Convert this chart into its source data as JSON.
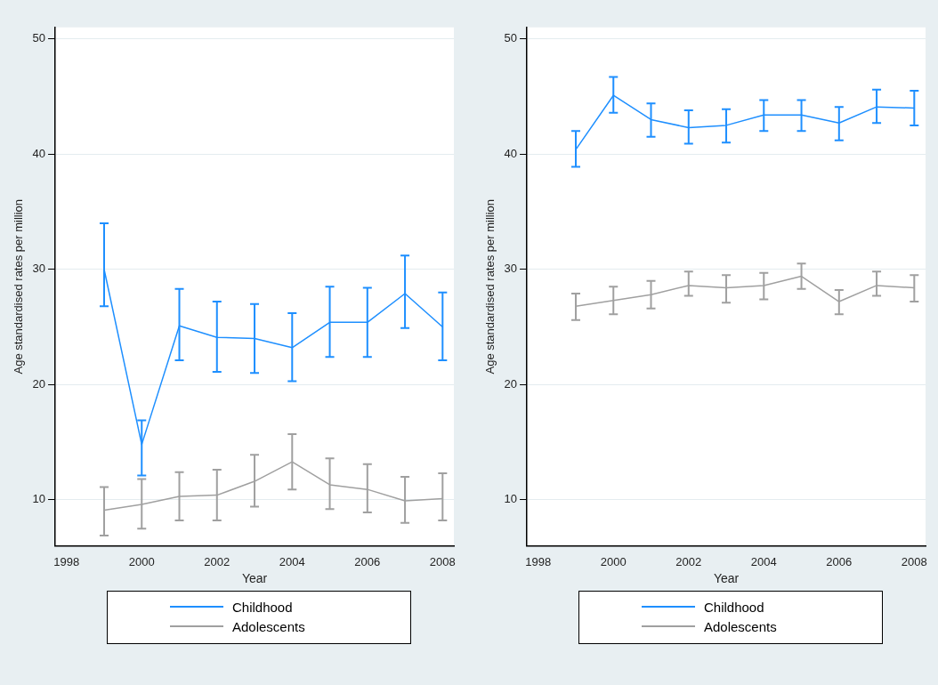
{
  "chart_data": [
    {
      "type": "line",
      "xlabel": "Year",
      "ylabel": "Age standardised rates per million",
      "x": [
        1999,
        2000,
        2001,
        2002,
        2003,
        2004,
        2005,
        2006,
        2007,
        2008
      ],
      "xlim": [
        1997.7,
        2008.3
      ],
      "xticks": [
        1998,
        2000,
        2002,
        2004,
        2006,
        2008
      ],
      "ylim": [
        6,
        51
      ],
      "yticks": [
        10,
        20,
        30,
        40,
        50
      ],
      "grid": "y",
      "legend": "bottom",
      "marker": "none",
      "series": [
        {
          "name": "Childhood",
          "color": "#1e8fff",
          "values": [
            30.0,
            14.8,
            25.1,
            24.1,
            24.0,
            23.2,
            25.4,
            25.4,
            27.9,
            25.0
          ],
          "errors": [
            [
              26.8,
              34.0
            ],
            [
              12.1,
              16.9
            ],
            [
              22.1,
              28.3
            ],
            [
              21.1,
              27.2
            ],
            [
              21.0,
              27.0
            ],
            [
              20.3,
              26.2
            ],
            [
              22.4,
              28.5
            ],
            [
              22.4,
              28.4
            ],
            [
              24.9,
              31.2
            ],
            [
              22.1,
              28.0
            ]
          ]
        },
        {
          "name": "Adolescents",
          "color": "#a0a0a0",
          "values": [
            9.1,
            9.6,
            10.3,
            10.4,
            11.6,
            13.3,
            11.3,
            10.9,
            9.9,
            10.1
          ],
          "errors": [
            [
              6.9,
              11.1
            ],
            [
              7.5,
              11.8
            ],
            [
              8.2,
              12.4
            ],
            [
              8.2,
              12.6
            ],
            [
              9.4,
              13.9
            ],
            [
              10.9,
              15.7
            ],
            [
              9.2,
              13.6
            ],
            [
              8.9,
              13.1
            ],
            [
              8.0,
              12.0
            ],
            [
              8.2,
              12.3
            ]
          ]
        }
      ]
    },
    {
      "type": "line",
      "xlabel": "Year",
      "ylabel": "Age standardised rates per million",
      "x": [
        1999,
        2000,
        2001,
        2002,
        2003,
        2004,
        2005,
        2006,
        2007,
        2008
      ],
      "xlim": [
        1997.7,
        2008.3
      ],
      "xticks": [
        1998,
        2000,
        2002,
        2004,
        2006,
        2008
      ],
      "ylim": [
        6,
        51
      ],
      "yticks": [
        10,
        20,
        30,
        40,
        50
      ],
      "grid": "y",
      "legend": "bottom",
      "marker": "none",
      "series": [
        {
          "name": "Childhood",
          "color": "#1e8fff",
          "values": [
            40.4,
            45.1,
            43.0,
            42.3,
            42.5,
            43.4,
            43.4,
            42.7,
            44.1,
            44.0
          ],
          "errors": [
            [
              38.9,
              42.0
            ],
            [
              43.6,
              46.7
            ],
            [
              41.5,
              44.4
            ],
            [
              40.9,
              43.8
            ],
            [
              41.0,
              43.9
            ],
            [
              42.0,
              44.7
            ],
            [
              42.0,
              44.7
            ],
            [
              41.2,
              44.1
            ],
            [
              42.7,
              45.6
            ],
            [
              42.5,
              45.5
            ]
          ]
        },
        {
          "name": "Adolescents",
          "color": "#a0a0a0",
          "values": [
            26.8,
            27.3,
            27.8,
            28.6,
            28.4,
            28.6,
            29.4,
            27.2,
            28.6,
            28.4
          ],
          "errors": [
            [
              25.6,
              27.9
            ],
            [
              26.1,
              28.5
            ],
            [
              26.6,
              29.0
            ],
            [
              27.7,
              29.8
            ],
            [
              27.1,
              29.5
            ],
            [
              27.4,
              29.7
            ],
            [
              28.3,
              30.5
            ],
            [
              26.1,
              28.2
            ],
            [
              27.7,
              29.8
            ],
            [
              27.2,
              29.5
            ]
          ]
        }
      ]
    }
  ]
}
